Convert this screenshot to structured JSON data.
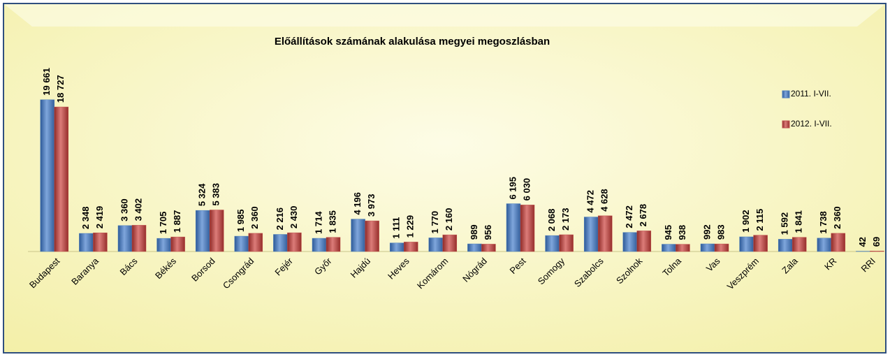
{
  "chart_data": {
    "type": "bar",
    "title": "Előállítások számának alakulása megyei megoszlásban",
    "categories": [
      "Budapest",
      "Baranya",
      "Bács",
      "Békés",
      "Borsod",
      "Csongrád",
      "Fejér",
      "Győr",
      "Hajdú",
      "Heves",
      "Komárom",
      "Nógrád",
      "Pest",
      "Somogy",
      "Szabolcs",
      "Szolnok",
      "Tolna",
      "Vas",
      "Veszprém",
      "Zala",
      "KR",
      "RRI"
    ],
    "series": [
      {
        "name": "2011. I-VII.",
        "color": "#4f81bd",
        "values": [
          19661,
          2348,
          3360,
          1705,
          5324,
          1985,
          2216,
          1714,
          4196,
          1111,
          1770,
          989,
          6195,
          2068,
          4472,
          2472,
          945,
          992,
          1902,
          1592,
          1738,
          42
        ],
        "value_labels": [
          "19 661",
          "2 348",
          "3 360",
          "1 705",
          "5 324",
          "1 985",
          "2 216",
          "1 714",
          "4 196",
          "1 111",
          "1 770",
          "989",
          "6 195",
          "2 068",
          "4 472",
          "2 472",
          "945",
          "992",
          "1 902",
          "1 592",
          "1 738",
          "42"
        ]
      },
      {
        "name": "2012. I-VII.",
        "color": "#c0504d",
        "values": [
          18727,
          2419,
          3402,
          1887,
          5383,
          2360,
          2430,
          1835,
          3973,
          1229,
          2160,
          956,
          6030,
          2173,
          4628,
          2678,
          938,
          983,
          2115,
          1841,
          2360,
          69
        ],
        "value_labels": [
          "18 727",
          "2 419",
          "3 402",
          "1 887",
          "5 383",
          "2 360",
          "2 430",
          "1 835",
          "3 973",
          "1 229",
          "2 160",
          "956",
          "6 030",
          "2 173",
          "4 628",
          "2 678",
          "938",
          "983",
          "2 115",
          "1 841",
          "2 360",
          "69"
        ]
      }
    ],
    "ylim": [
      0,
      20000
    ],
    "legend": "right"
  }
}
